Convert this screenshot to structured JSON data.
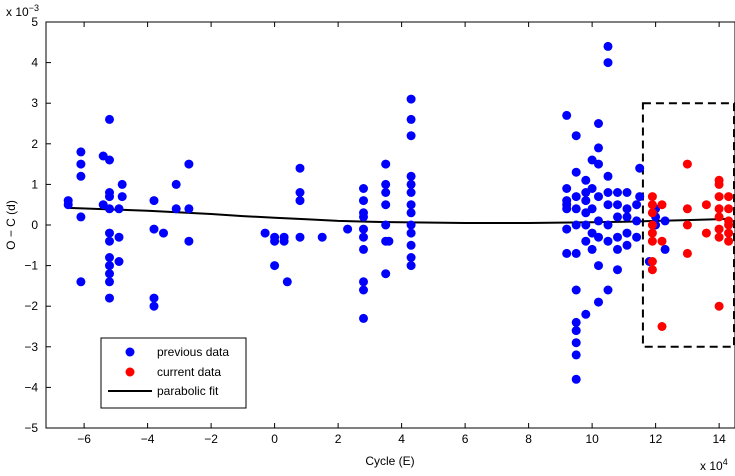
{
  "chart_data": {
    "type": "scatter",
    "xlabel": "Cycle (E)",
    "ylabel": "O − C (d)",
    "x_multiplier": "x 10",
    "x_multiplier_exp": "4",
    "y_multiplier": "x 10",
    "y_multiplier_exp": "−3",
    "xlim": [
      -7.2,
      14.5
    ],
    "ylim": [
      -5,
      5
    ],
    "x_ticks": [
      -6,
      -4,
      -2,
      0,
      2,
      4,
      6,
      8,
      10,
      12,
      14
    ],
    "x_tick_labels": [
      "−6",
      "−4",
      "−2",
      "0",
      "2",
      "4",
      "6",
      "8",
      "10",
      "12",
      "14"
    ],
    "y_ticks": [
      -5,
      -4,
      -3,
      -2,
      -1,
      0,
      1,
      2,
      3,
      4,
      5
    ],
    "y_tick_labels": [
      "−5",
      "−4",
      "−3",
      "−2",
      "−1",
      "0",
      "1",
      "2",
      "3",
      "4",
      "5"
    ],
    "grid": false,
    "legend_position": "bottom-left",
    "colors": {
      "previous": "#0000ff",
      "current": "#ff0000",
      "fit": "#000000",
      "box": "#000000"
    },
    "series": [
      {
        "name": "previous data",
        "kind": "points",
        "color": "#0000ff",
        "points": [
          [
            -6.5,
            0.6
          ],
          [
            -6.5,
            0.5
          ],
          [
            -6.1,
            1.8
          ],
          [
            -6.1,
            1.5
          ],
          [
            -6.1,
            1.2
          ],
          [
            -6.1,
            0.2
          ],
          [
            -6.1,
            -1.4
          ],
          [
            -5.4,
            1.7
          ],
          [
            -5.4,
            0.5
          ],
          [
            -5.2,
            2.6
          ],
          [
            -5.2,
            1.6
          ],
          [
            -5.2,
            0.8
          ],
          [
            -5.2,
            0.7
          ],
          [
            -5.2,
            0.4
          ],
          [
            -5.2,
            -0.2
          ],
          [
            -5.2,
            -0.4
          ],
          [
            -5.2,
            -0.8
          ],
          [
            -5.2,
            -1.0
          ],
          [
            -5.2,
            -1.2
          ],
          [
            -5.2,
            -1.4
          ],
          [
            -5.2,
            -1.8
          ],
          [
            -4.9,
            0.4
          ],
          [
            -4.9,
            -0.3
          ],
          [
            -4.9,
            -0.9
          ],
          [
            -4.8,
            1.0
          ],
          [
            -4.8,
            0.7
          ],
          [
            -3.8,
            0.6
          ],
          [
            -3.8,
            -0.1
          ],
          [
            -3.8,
            -1.8
          ],
          [
            -3.8,
            -2.0
          ],
          [
            -3.5,
            -0.2
          ],
          [
            -3.1,
            1.0
          ],
          [
            -3.1,
            0.4
          ],
          [
            -2.7,
            1.5
          ],
          [
            -2.7,
            0.4
          ],
          [
            -2.7,
            -0.4
          ],
          [
            -0.3,
            -0.2
          ],
          [
            0.0,
            -0.3
          ],
          [
            0.0,
            -0.4
          ],
          [
            0.0,
            -1.0
          ],
          [
            0.3,
            -0.4
          ],
          [
            0.3,
            -0.3
          ],
          [
            0.4,
            -1.4
          ],
          [
            0.8,
            1.4
          ],
          [
            0.8,
            0.8
          ],
          [
            0.8,
            0.6
          ],
          [
            0.8,
            -0.3
          ],
          [
            1.5,
            -0.3
          ],
          [
            2.3,
            -0.1
          ],
          [
            2.8,
            0.9
          ],
          [
            2.8,
            0.6
          ],
          [
            2.8,
            0.3
          ],
          [
            2.8,
            0.2
          ],
          [
            2.8,
            -0.1
          ],
          [
            2.8,
            -0.3
          ],
          [
            2.8,
            -0.6
          ],
          [
            2.8,
            -1.4
          ],
          [
            2.8,
            -1.6
          ],
          [
            2.8,
            -2.3
          ],
          [
            3.5,
            1.5
          ],
          [
            3.5,
            1.0
          ],
          [
            3.5,
            0.8
          ],
          [
            3.5,
            0.5
          ],
          [
            3.5,
            0.0
          ],
          [
            3.5,
            -0.4
          ],
          [
            3.5,
            -1.2
          ],
          [
            3.6,
            -0.4
          ],
          [
            4.3,
            3.1
          ],
          [
            4.3,
            2.6
          ],
          [
            4.3,
            2.2
          ],
          [
            4.3,
            1.2
          ],
          [
            4.3,
            1.0
          ],
          [
            4.3,
            0.8
          ],
          [
            4.3,
            0.5
          ],
          [
            4.3,
            0.3
          ],
          [
            4.3,
            0.0
          ],
          [
            4.3,
            -0.2
          ],
          [
            4.3,
            -0.5
          ],
          [
            4.3,
            -0.8
          ],
          [
            4.3,
            -1.0
          ],
          [
            9.2,
            2.7
          ],
          [
            9.2,
            0.9
          ],
          [
            9.2,
            0.6
          ],
          [
            9.2,
            0.5
          ],
          [
            9.2,
            0.4
          ],
          [
            9.2,
            -0.1
          ],
          [
            9.2,
            -0.7
          ],
          [
            9.5,
            2.2
          ],
          [
            9.5,
            1.3
          ],
          [
            9.5,
            0.7
          ],
          [
            9.5,
            0.4
          ],
          [
            9.5,
            0.0
          ],
          [
            9.5,
            -0.7
          ],
          [
            9.5,
            -1.6
          ],
          [
            9.5,
            -2.4
          ],
          [
            9.5,
            -2.6
          ],
          [
            9.5,
            -2.9
          ],
          [
            9.5,
            -3.2
          ],
          [
            9.5,
            -3.8
          ],
          [
            9.8,
            1.1
          ],
          [
            9.8,
            0.8
          ],
          [
            9.8,
            0.6
          ],
          [
            9.8,
            0.3
          ],
          [
            9.8,
            0.0
          ],
          [
            9.8,
            -0.4
          ],
          [
            9.8,
            -2.2
          ],
          [
            10.0,
            1.6
          ],
          [
            10.0,
            0.9
          ],
          [
            10.0,
            0.4
          ],
          [
            10.0,
            -0.2
          ],
          [
            10.0,
            -0.6
          ],
          [
            10.2,
            2.5
          ],
          [
            10.2,
            1.9
          ],
          [
            10.2,
            1.5
          ],
          [
            10.2,
            0.7
          ],
          [
            10.2,
            0.1
          ],
          [
            10.2,
            -0.3
          ],
          [
            10.2,
            -1.0
          ],
          [
            10.2,
            -1.9
          ],
          [
            10.5,
            4.4
          ],
          [
            10.5,
            4.0
          ],
          [
            10.5,
            1.2
          ],
          [
            10.5,
            0.8
          ],
          [
            10.5,
            0.5
          ],
          [
            10.5,
            0.0
          ],
          [
            10.5,
            -0.4
          ],
          [
            10.5,
            -1.6
          ],
          [
            10.8,
            0.8
          ],
          [
            10.8,
            0.5
          ],
          [
            10.8,
            0.2
          ],
          [
            10.8,
            -0.3
          ],
          [
            10.8,
            -0.6
          ],
          [
            10.8,
            -1.1
          ],
          [
            11.1,
            0.8
          ],
          [
            11.1,
            0.4
          ],
          [
            11.1,
            0.2
          ],
          [
            11.1,
            -0.2
          ],
          [
            11.1,
            -0.5
          ],
          [
            11.4,
            0.5
          ],
          [
            11.4,
            0.1
          ],
          [
            11.4,
            -0.3
          ],
          [
            11.5,
            1.4
          ],
          [
            11.5,
            0.7
          ],
          [
            11.8,
            -0.9
          ],
          [
            12.0,
            0.4
          ],
          [
            12.0,
            0.2
          ],
          [
            12.0,
            0.0
          ],
          [
            12.3,
            -0.6
          ],
          [
            12.3,
            0.1
          ]
        ]
      },
      {
        "name": "current data",
        "kind": "points",
        "color": "#ff0000",
        "points": [
          [
            11.9,
            0.7
          ],
          [
            11.9,
            0.5
          ],
          [
            11.9,
            0.3
          ],
          [
            11.9,
            0.0
          ],
          [
            11.9,
            -0.2
          ],
          [
            11.9,
            -0.4
          ],
          [
            11.9,
            -0.9
          ],
          [
            11.9,
            -1.1
          ],
          [
            12.2,
            0.5
          ],
          [
            12.2,
            -0.4
          ],
          [
            12.2,
            -2.5
          ],
          [
            13.0,
            1.5
          ],
          [
            13.0,
            0.4
          ],
          [
            13.0,
            0.0
          ],
          [
            13.0,
            -0.7
          ],
          [
            13.6,
            0.5
          ],
          [
            13.6,
            -0.2
          ],
          [
            14.0,
            1.1
          ],
          [
            14.0,
            1.0
          ],
          [
            14.0,
            0.7
          ],
          [
            14.0,
            0.4
          ],
          [
            14.0,
            0.2
          ],
          [
            14.0,
            -0.1
          ],
          [
            14.0,
            -0.3
          ],
          [
            14.0,
            -2.0
          ],
          [
            14.3,
            0.7
          ],
          [
            14.3,
            0.4
          ],
          [
            14.3,
            0.1
          ],
          [
            14.3,
            0.0
          ],
          [
            14.3,
            -0.2
          ],
          [
            14.3,
            -0.4
          ]
        ]
      },
      {
        "name": "parabolic fit",
        "kind": "line",
        "color": "#000000",
        "x": [
          -6.5,
          -5,
          -4,
          -3,
          -2,
          -1,
          0,
          1,
          2,
          3,
          4,
          5,
          6,
          7,
          8,
          9,
          10,
          11,
          12,
          13,
          14.3
        ],
        "y": [
          0.42,
          0.38,
          0.35,
          0.31,
          0.27,
          0.22,
          0.18,
          0.14,
          0.1,
          0.08,
          0.07,
          0.06,
          0.05,
          0.05,
          0.05,
          0.06,
          0.07,
          0.08,
          0.1,
          0.12,
          0.15
        ]
      }
    ],
    "annotations": [
      {
        "type": "dashed-box",
        "x0": 11.6,
        "x1": 14.5,
        "y0": -3.0,
        "y1": 3.0
      }
    ]
  }
}
